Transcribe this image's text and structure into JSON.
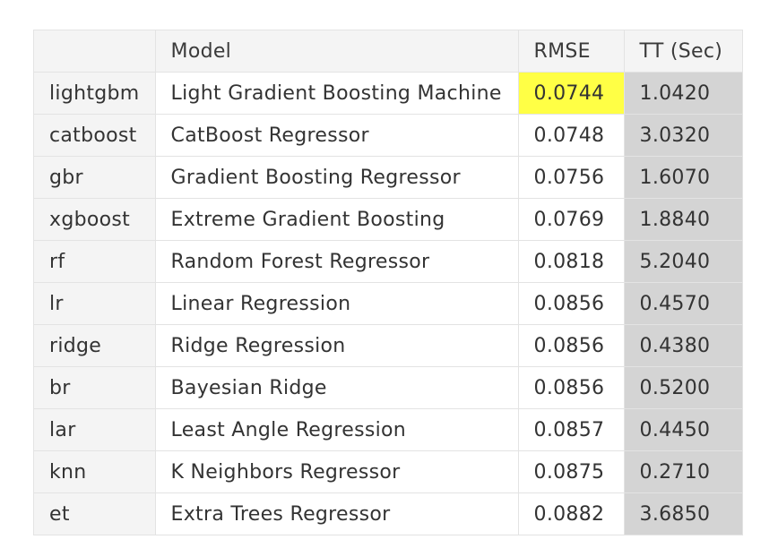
{
  "table": {
    "columns": [
      "",
      "Model",
      "RMSE",
      "TT (Sec)"
    ],
    "highlight": {
      "best_color": "#ffff45",
      "tt_color": "#d4d4d4"
    },
    "rows": [
      {
        "id": "lightgbm",
        "model": "Light Gradient Boosting Machine",
        "rmse": "0.0744",
        "tt": "1.0420",
        "best": true
      },
      {
        "id": "catboost",
        "model": "CatBoost Regressor",
        "rmse": "0.0748",
        "tt": "3.0320"
      },
      {
        "id": "gbr",
        "model": "Gradient Boosting Regressor",
        "rmse": "0.0756",
        "tt": "1.6070"
      },
      {
        "id": "xgboost",
        "model": "Extreme Gradient Boosting",
        "rmse": "0.0769",
        "tt": "1.8840"
      },
      {
        "id": "rf",
        "model": "Random Forest Regressor",
        "rmse": "0.0818",
        "tt": "5.2040"
      },
      {
        "id": "lr",
        "model": "Linear Regression",
        "rmse": "0.0856",
        "tt": "0.4570"
      },
      {
        "id": "ridge",
        "model": "Ridge Regression",
        "rmse": "0.0856",
        "tt": "0.4380"
      },
      {
        "id": "br",
        "model": "Bayesian Ridge",
        "rmse": "0.0856",
        "tt": "0.5200"
      },
      {
        "id": "lar",
        "model": "Least Angle Regression",
        "rmse": "0.0857",
        "tt": "0.4450"
      },
      {
        "id": "knn",
        "model": "K Neighbors Regressor",
        "rmse": "0.0875",
        "tt": "0.2710"
      },
      {
        "id": "et",
        "model": "Extra Trees Regressor",
        "rmse": "0.0882",
        "tt": "3.6850"
      }
    ]
  }
}
